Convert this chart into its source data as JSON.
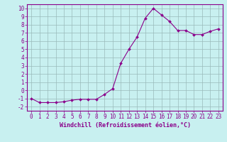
{
  "x": [
    0,
    1,
    2,
    3,
    4,
    5,
    6,
    7,
    8,
    9,
    10,
    11,
    12,
    13,
    14,
    15,
    16,
    17,
    18,
    19,
    20,
    21,
    22,
    23
  ],
  "y": [
    -1.0,
    -1.5,
    -1.5,
    -1.5,
    -1.4,
    -1.2,
    -1.1,
    -1.1,
    -1.1,
    -0.5,
    0.2,
    3.3,
    5.0,
    6.5,
    8.8,
    10.0,
    9.2,
    8.4,
    7.3,
    7.3,
    6.8,
    6.8,
    7.2,
    7.5
  ],
  "line_color": "#8B008B",
  "marker": "D",
  "marker_size": 2.0,
  "xlabel": "Windchill (Refroidissement éolien,°C)",
  "ylabel_ticks": [
    "-2",
    "-1",
    "0",
    "1",
    "2",
    "3",
    "4",
    "5",
    "6",
    "7",
    "8",
    "9",
    "10"
  ],
  "yticks": [
    -2,
    -1,
    0,
    1,
    2,
    3,
    4,
    5,
    6,
    7,
    8,
    9,
    10
  ],
  "ylim": [
    -2.5,
    10.5
  ],
  "xlim": [
    -0.5,
    23.5
  ],
  "bg_color": "#c8f0f0",
  "grid_color": "#9ababa",
  "font_color": "#8B008B",
  "tick_fontsize": 5.5,
  "xlabel_fontsize": 6.0
}
